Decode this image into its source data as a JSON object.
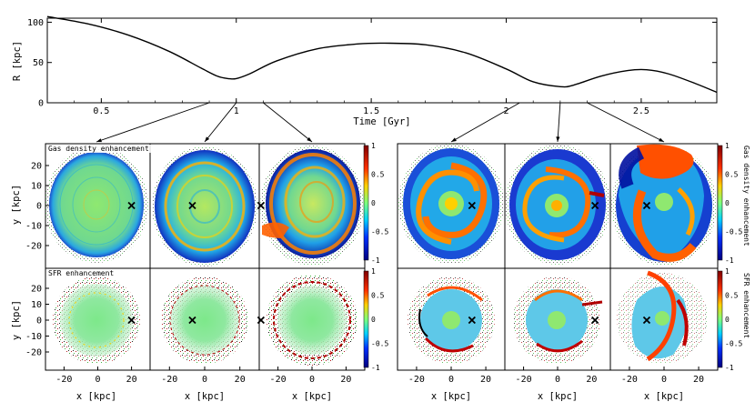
{
  "orbit": {
    "ylabel": "R [kpc]",
    "xlabel": "Time [Gyr]",
    "xticks": [
      "0.5",
      "1",
      "1.5",
      "2",
      "2.5"
    ],
    "yticks": [
      "0",
      "50",
      "100"
    ]
  },
  "chart_data": {
    "type": "line",
    "title": "",
    "xlabel": "Time [Gyr]",
    "ylabel": "R [kpc]",
    "xlim": [
      0.3,
      2.78
    ],
    "ylim": [
      0,
      105
    ],
    "x": [
      0.3,
      0.45,
      0.6,
      0.75,
      0.87,
      0.93,
      0.97,
      1.0,
      1.05,
      1.15,
      1.3,
      1.45,
      1.55,
      1.7,
      1.85,
      2.0,
      2.1,
      2.2,
      2.25,
      2.35,
      2.45,
      2.52,
      2.6,
      2.7,
      2.78
    ],
    "y": [
      107,
      98,
      84,
      64,
      43,
      33,
      30,
      30,
      36,
      52,
      67,
      73,
      74,
      72,
      62,
      42,
      26,
      20,
      22,
      33,
      40,
      41,
      36,
      24,
      13
    ],
    "snapshots": [
      0.9,
      1.0,
      1.1,
      2.05,
      2.2,
      2.3
    ]
  },
  "maps": {
    "gas_label": "Gas density enhancement",
    "sfr_label": "SFR enhancement",
    "xlabel": "x [kpc]",
    "ylabel": "y [kpc]",
    "xticks": [
      "-20",
      "0",
      "20"
    ],
    "yticks": [
      "20",
      "10",
      "0",
      "-10",
      "-20"
    ],
    "cbar_ticks": [
      "1",
      "0.5",
      "0",
      "-0.5",
      "-1"
    ],
    "xpos": [
      20,
      -7,
      -30,
      12,
      22,
      -10
    ]
  }
}
